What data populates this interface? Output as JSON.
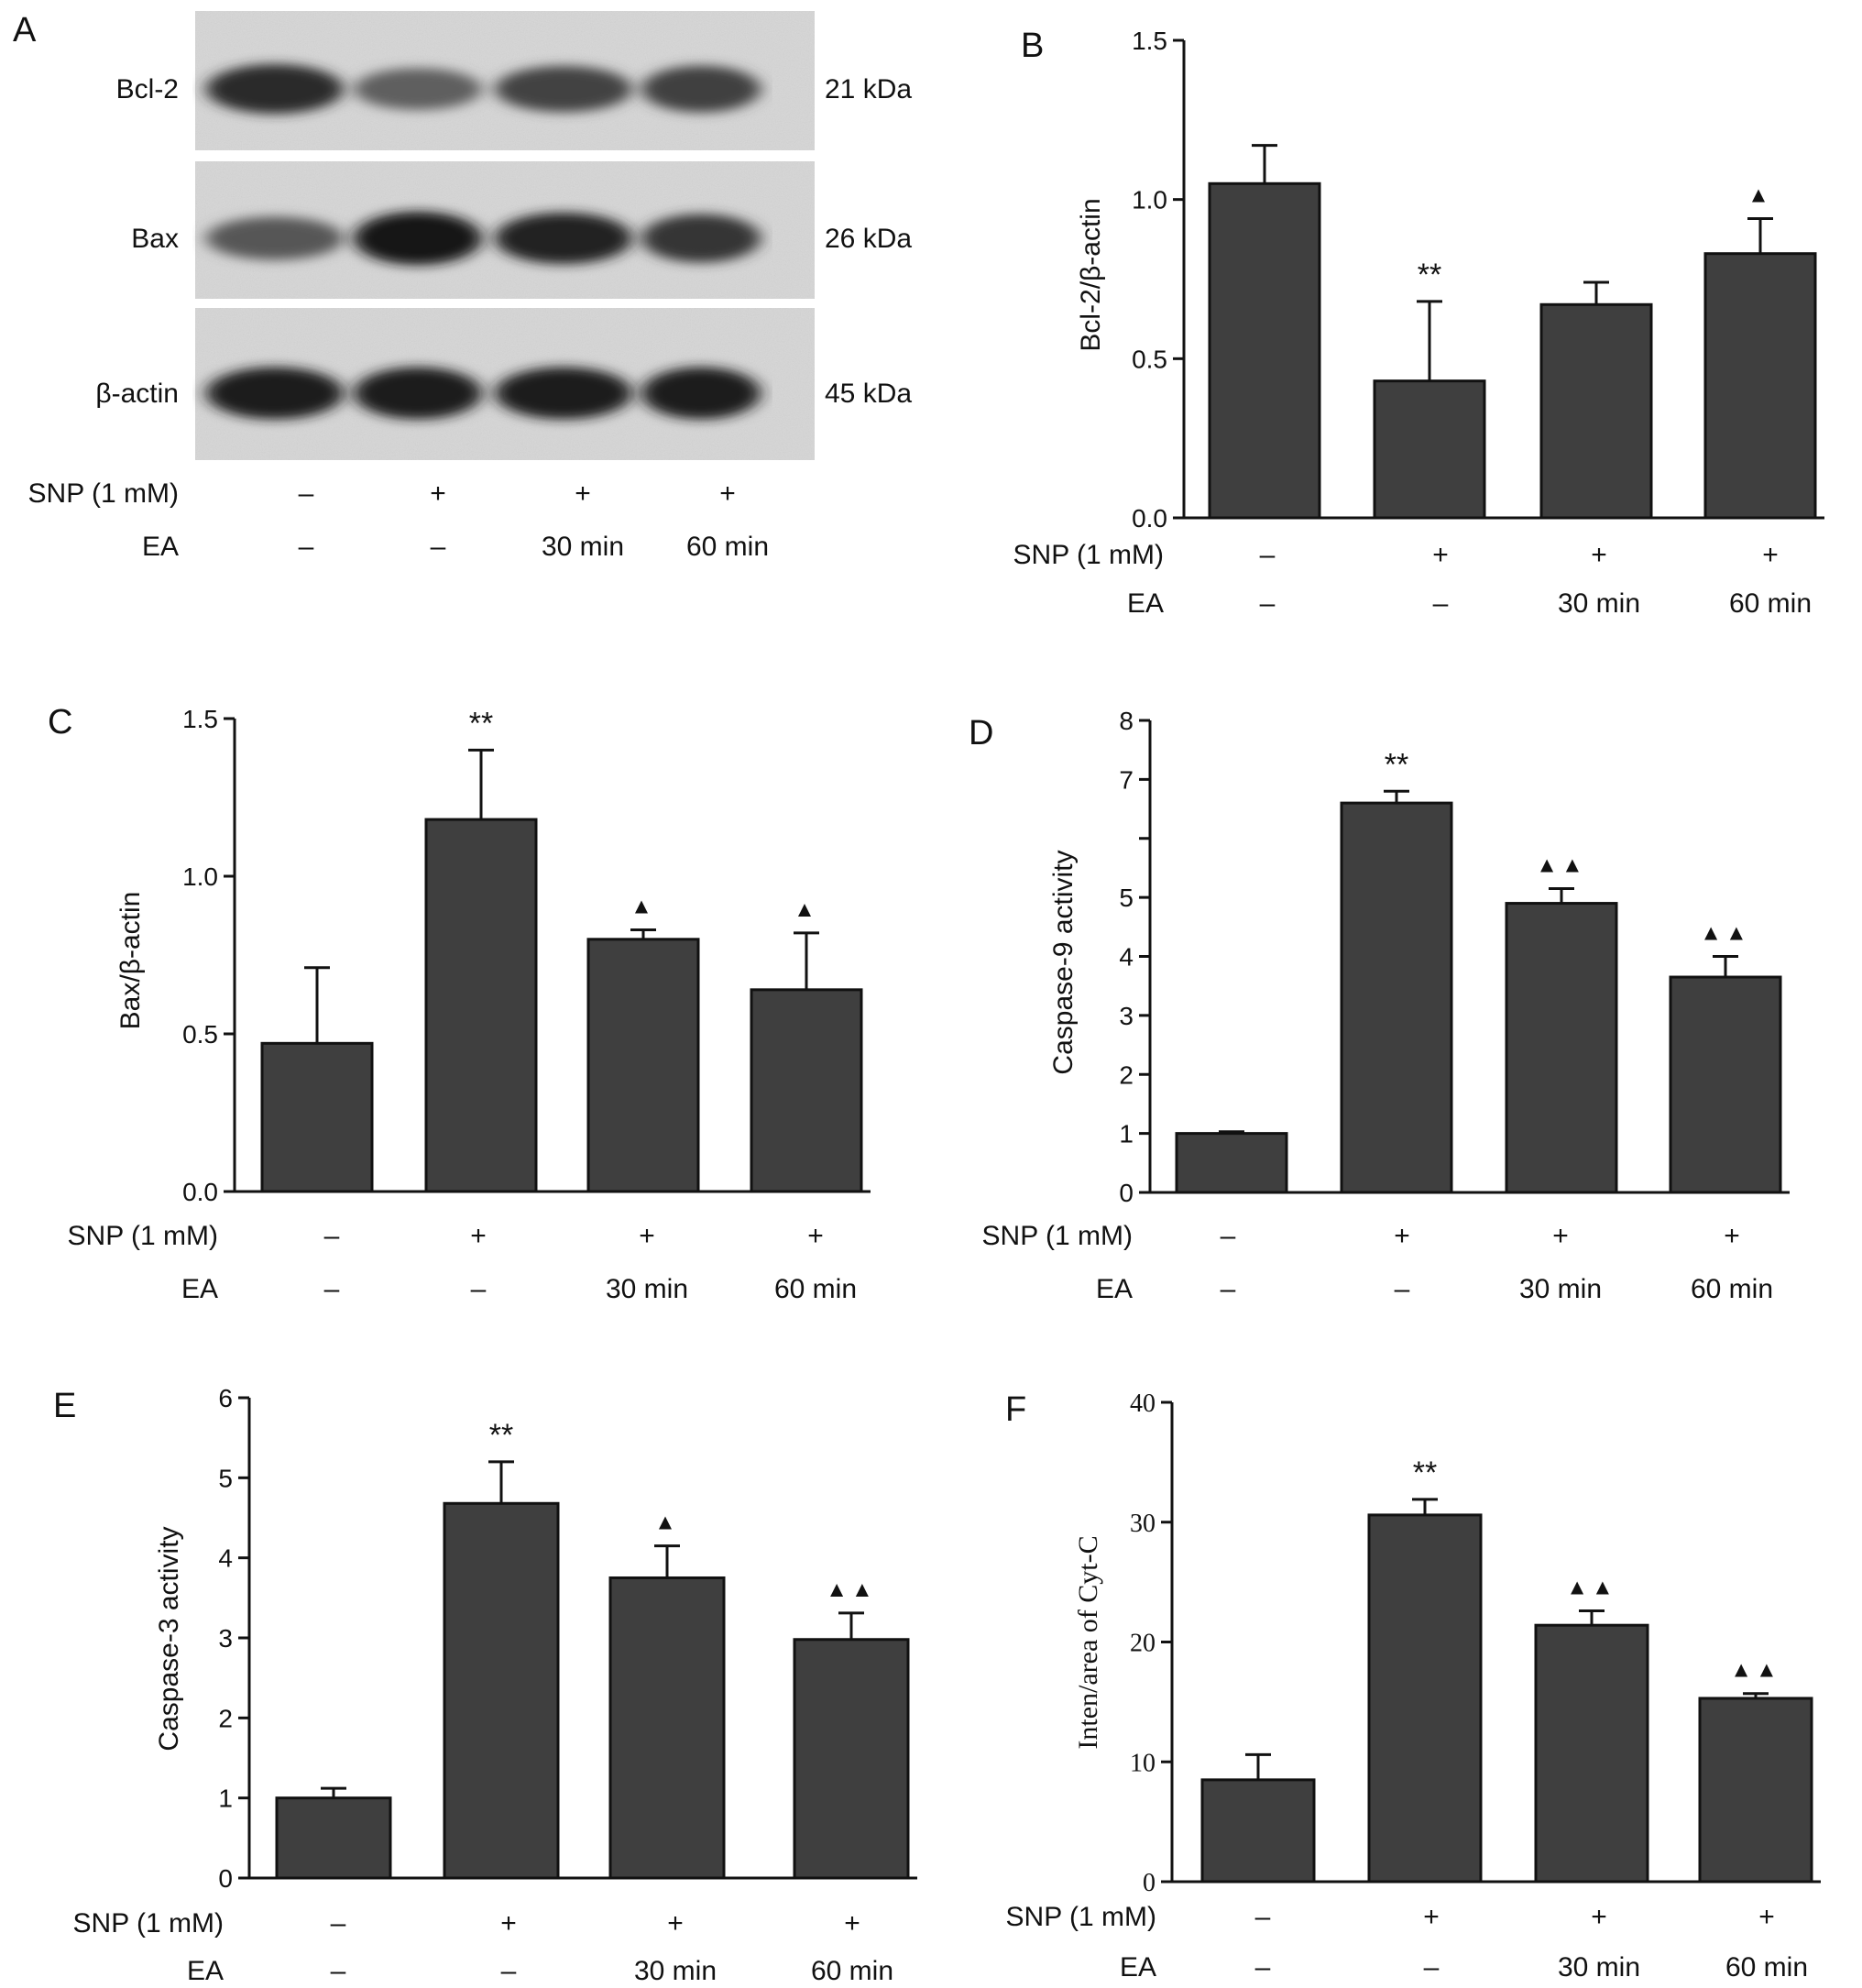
{
  "panel_letters": [
    "A",
    "B",
    "C",
    "D",
    "E",
    "F"
  ],
  "blot": {
    "rows": [
      {
        "label": "Bcl-2",
        "size": "21 kDa",
        "intensity": [
          0.82,
          0.55,
          0.7,
          0.72
        ]
      },
      {
        "label": "Bax",
        "size": "26 kDa",
        "intensity": [
          0.6,
          0.95,
          0.88,
          0.78
        ]
      },
      {
        "label": "β-actin",
        "size": "45 kDa",
        "intensity": [
          0.9,
          0.9,
          0.9,
          0.9
        ]
      }
    ],
    "snp_label": "SNP (1 mM)",
    "ea_label": "EA",
    "snp": [
      "–",
      "+",
      "+",
      "+"
    ],
    "ea": [
      "–",
      "–",
      "30 min",
      "60 min"
    ]
  },
  "chart_data": [
    {
      "panel": "B",
      "type": "bar",
      "ylabel": "Bcl-2/β-actin",
      "ylim": [
        0,
        1.5
      ],
      "yticks": [
        "0.0",
        "0.5",
        "1.0",
        "1.5"
      ],
      "values": [
        1.05,
        0.43,
        0.67,
        0.83
      ],
      "errors": [
        0.12,
        0.25,
        0.07,
        0.11
      ],
      "marks": [
        "",
        "**",
        "",
        "▲"
      ],
      "snp_label": "SNP (1 mM)",
      "ea_label": "EA",
      "snp": [
        "–",
        "+",
        "+",
        "+"
      ],
      "ea": [
        "–",
        "–",
        "30 min",
        "60 min"
      ]
    },
    {
      "panel": "C",
      "type": "bar",
      "ylabel": "Bax/β-actin",
      "ylim": [
        0,
        1.5
      ],
      "yticks": [
        "0.0",
        "0.5",
        "1.0",
        "1.5"
      ],
      "values": [
        0.47,
        1.18,
        0.8,
        0.64
      ],
      "errors": [
        0.24,
        0.22,
        0.03,
        0.18
      ],
      "marks": [
        "",
        "**",
        "▲",
        "▲"
      ],
      "snp_label": "SNP (1 mM)",
      "ea_label": "EA",
      "snp": [
        "–",
        "+",
        "+",
        "+"
      ],
      "ea": [
        "–",
        "–",
        "30 min",
        "60 min"
      ]
    },
    {
      "panel": "D",
      "type": "bar",
      "ylabel": "Caspase-9 activity",
      "ylim": [
        0,
        8
      ],
      "yticks": [
        "0",
        "1",
        "2",
        "3",
        "4",
        "5",
        "",
        "7",
        "8"
      ],
      "values": [
        1.0,
        6.6,
        4.9,
        3.65
      ],
      "errors": [
        0.03,
        0.2,
        0.25,
        0.35
      ],
      "marks": [
        "",
        "**",
        "▲▲",
        "▲▲"
      ],
      "snp_label": "SNP (1 mM)",
      "ea_label": "EA",
      "snp": [
        "–",
        "+",
        "+",
        "+"
      ],
      "ea": [
        "–",
        "–",
        "30 min",
        "60 min"
      ]
    },
    {
      "panel": "E",
      "type": "bar",
      "ylabel": "Caspase-3 activity",
      "ylim": [
        0,
        6
      ],
      "yticks": [
        "0",
        "1",
        "2",
        "3",
        "4",
        "5",
        "6"
      ],
      "values": [
        1.0,
        4.68,
        3.75,
        2.98
      ],
      "errors": [
        0.12,
        0.52,
        0.4,
        0.33
      ],
      "marks": [
        "",
        "**",
        "▲",
        "▲▲"
      ],
      "snp_label": "SNP (1 mM)",
      "ea_label": "EA",
      "snp": [
        "–",
        "+",
        "+",
        "+"
      ],
      "ea": [
        "–",
        "–",
        "30 min",
        "60 min"
      ]
    },
    {
      "panel": "F",
      "type": "bar",
      "ylabel": "Inten/area of Cyt-C",
      "ylim": [
        0,
        40
      ],
      "yticks": [
        "0",
        "10",
        "20",
        "30",
        "40"
      ],
      "values": [
        8.5,
        30.6,
        21.4,
        15.3
      ],
      "errors": [
        2.1,
        1.3,
        1.2,
        0.4
      ],
      "marks": [
        "",
        "**",
        "▲▲",
        "▲▲"
      ],
      "snp_label": "SNP (1 mM)",
      "ea_label": "EA",
      "snp": [
        "–",
        "+",
        "+",
        "+"
      ],
      "ea": [
        "–",
        "–",
        "30 min",
        "60 min"
      ]
    }
  ]
}
